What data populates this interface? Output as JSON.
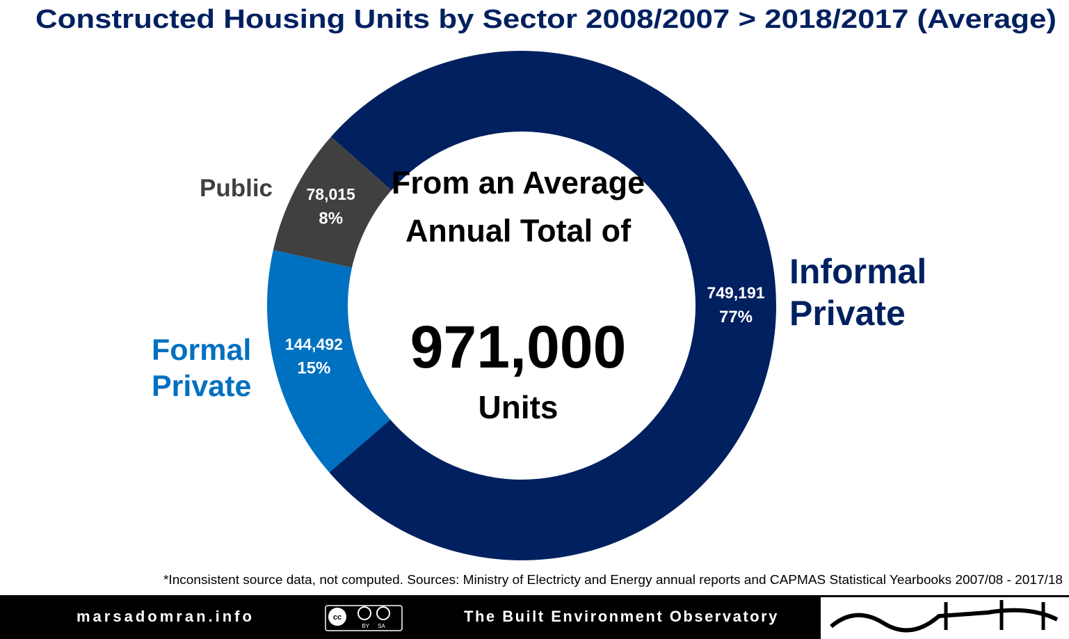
{
  "chart_data": {
    "type": "donut",
    "title": "Constructed Housing Units by Sector 2008/2007 > 2018/2017 (Average)",
    "categories": [
      "Informal Private",
      "Formal Private",
      "Public"
    ],
    "values": [
      749191,
      144492,
      78015
    ],
    "value_labels": [
      "749,191",
      "144,492",
      "78,015"
    ],
    "percent_values": [
      77,
      15,
      8
    ],
    "percent_labels": [
      "77%",
      "15%",
      "8%"
    ],
    "colors": [
      "#002060",
      "#0070c0",
      "#404040"
    ],
    "center_text": "From an Average Annual Total of",
    "center_total": "971,000",
    "center_unit": "Units",
    "footnote": "*Inconsistent source data, not computed. Sources: Ministry of Electricty and Energy annual reports and CAPMAS Statistical Yearbooks 2007/08 - 2017/18"
  },
  "footer": {
    "site": "marsadomran.info",
    "license": "BY SA",
    "organization": "The Built Environment Observatory"
  }
}
